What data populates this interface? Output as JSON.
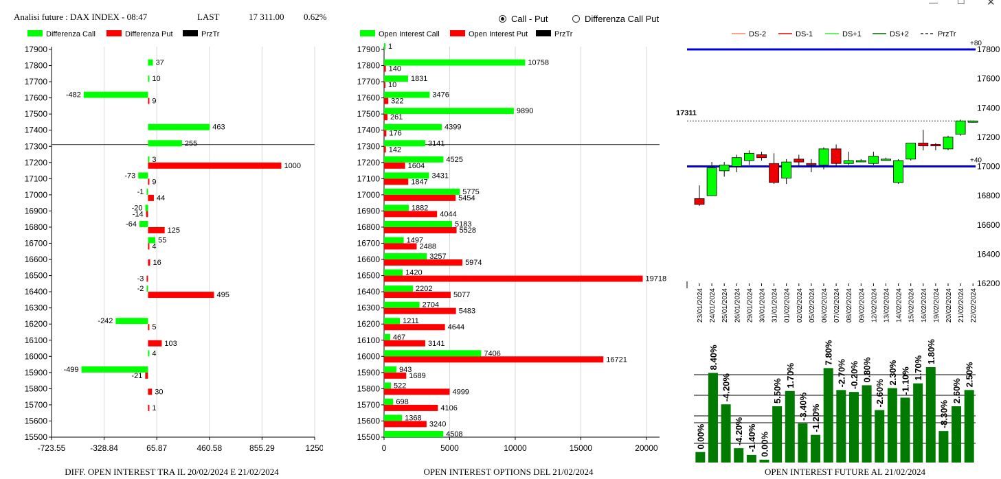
{
  "header": {
    "title": "Analisi future : DAX INDEX - 08:47",
    "last_label": "LAST",
    "last_value": "17 311.00",
    "change": "0.62%"
  },
  "mode_options": [
    {
      "label": "Call - Put",
      "selected": true
    },
    {
      "label": "Differenza Call Put",
      "selected": false
    }
  ],
  "colors": {
    "call": "#00ff00",
    "put": "#ff0000",
    "price_line": "#000000",
    "blue": "#0000cc",
    "bar_green": "#007a00"
  },
  "chart_data": [
    {
      "type": "bar",
      "orientation": "horizontal",
      "title": "DIFF. OPEN INTEREST TRA IL 20/02/2024 E 21/02/2024",
      "legend": [
        "Differenza Call",
        "Differenza Put",
        "PrzTr"
      ],
      "legend_position": "top-left",
      "categories": [
        "17900",
        "17800",
        "17700",
        "17600",
        "17500",
        "17400",
        "17300",
        "17200",
        "17100",
        "17000",
        "16900",
        "16800",
        "16700",
        "16600",
        "16500",
        "16400",
        "16300",
        "16200",
        "16100",
        "16000",
        "15900",
        "15800",
        "15700",
        "15600",
        "15500"
      ],
      "series": [
        {
          "name": "Differenza Call",
          "values": [
            null,
            37,
            10,
            -482,
            null,
            463,
            255,
            3,
            -73,
            -1,
            -20,
            -64,
            55,
            null,
            null,
            -2,
            null,
            -242,
            null,
            4,
            -499,
            null,
            null,
            null,
            null
          ]
        },
        {
          "name": "Differenza Put",
          "values": [
            null,
            null,
            null,
            9,
            null,
            null,
            null,
            1000,
            9,
            44,
            -14,
            125,
            4,
            16,
            -3,
            495,
            null,
            5,
            103,
            null,
            -21,
            30,
            1,
            null,
            null
          ]
        }
      ],
      "x_ticks": [
        "-723.55",
        "-328.84",
        "65.87",
        "460.58",
        "855.29",
        "1250"
      ],
      "xlim": [
        -723.55,
        1250
      ],
      "price_line": "17311",
      "grid": true
    },
    {
      "type": "bar",
      "orientation": "horizontal",
      "title": "OPEN INTEREST OPTIONS DEL 21/02/2024",
      "legend": [
        "Open Interest Call",
        "Open Interest Put",
        "PrzTr"
      ],
      "legend_position": "top-left",
      "categories": [
        "17900",
        "17800",
        "17700",
        "17600",
        "17500",
        "17400",
        "17300",
        "17200",
        "17100",
        "17000",
        "16900",
        "16800",
        "16700",
        "16600",
        "16500",
        "16400",
        "16300",
        "16200",
        "16100",
        "16000",
        "15900",
        "15800",
        "15700",
        "15600",
        "15500"
      ],
      "series": [
        {
          "name": "Open Interest Call",
          "values": [
            1,
            10758,
            1831,
            3476,
            9890,
            4399,
            3141,
            4525,
            3431,
            5775,
            1882,
            5183,
            1497,
            3257,
            1420,
            2202,
            2704,
            1211,
            467,
            7406,
            943,
            522,
            698,
            1368,
            4508
          ]
        },
        {
          "name": "Open Interest Put",
          "values": [
            null,
            140,
            10,
            322,
            261,
            176,
            142,
            1604,
            1847,
            5454,
            4044,
            5528,
            2488,
            5974,
            19718,
            5077,
            5483,
            4644,
            3141,
            16721,
            1689,
            4999,
            4106,
            3240,
            null
          ]
        }
      ],
      "x_ticks": [
        "0",
        "5000",
        "10000",
        "15000",
        "20000"
      ],
      "xlim": [
        0,
        21000
      ],
      "price_line": "17311",
      "grid": true
    },
    {
      "type": "candlestick",
      "title": "OPEN INTEREST FUTURE AL 21/02/2024",
      "legend": [
        "DS-2",
        "DS-1",
        "DS+1",
        "DS+2",
        "PrzTr"
      ],
      "legend_position": "top",
      "x": [
        "23/01/2024",
        "24/01/2024",
        "25/01/2024",
        "26/01/2024",
        "29/01/2024",
        "30/01/2024",
        "31/01/2024",
        "01/02/2024",
        "02/02/2024",
        "05/02/2024",
        "06/02/2024",
        "07/02/2024",
        "08/02/2024",
        "09/02/2024",
        "12/02/2024",
        "13/02/2024",
        "14/02/2024",
        "15/02/2024",
        "16/02/2024",
        "19/02/2024",
        "20/02/2024",
        "21/02/2024",
        "22/02/2024"
      ],
      "candles": [
        {
          "o": 16780,
          "c": 16740,
          "h": 16870,
          "l": 16730
        },
        {
          "o": 16800,
          "c": 16990,
          "h": 17030,
          "l": 16800
        },
        {
          "o": 16970,
          "c": 17010,
          "h": 17030,
          "l": 16930
        },
        {
          "o": 17000,
          "c": 17060,
          "h": 17080,
          "l": 16960
        },
        {
          "o": 17040,
          "c": 17090,
          "h": 17110,
          "l": 17010
        },
        {
          "o": 17080,
          "c": 17060,
          "h": 17100,
          "l": 17040
        },
        {
          "o": 17020,
          "c": 16890,
          "h": 17090,
          "l": 16880
        },
        {
          "o": 16920,
          "c": 17030,
          "h": 17050,
          "l": 16880
        },
        {
          "o": 17050,
          "c": 17030,
          "h": 17080,
          "l": 17000
        },
        {
          "o": 17020,
          "c": 17010,
          "h": 17050,
          "l": 16960
        },
        {
          "o": 17010,
          "c": 17120,
          "h": 17130,
          "l": 16980
        },
        {
          "o": 17120,
          "c": 17020,
          "h": 17150,
          "l": 17000
        },
        {
          "o": 17020,
          "c": 17040,
          "h": 17100,
          "l": 17010
        },
        {
          "o": 17040,
          "c": 17040,
          "h": 17050,
          "l": 17030
        },
        {
          "o": 17020,
          "c": 17070,
          "h": 17100,
          "l": 17010
        },
        {
          "o": 17050,
          "c": 17050,
          "h": 17060,
          "l": 17040
        },
        {
          "o": 16890,
          "c": 17040,
          "h": 17050,
          "l": 16880
        },
        {
          "o": 17050,
          "c": 17160,
          "h": 17160,
          "l": 17040
        },
        {
          "o": 17160,
          "c": 17140,
          "h": 17250,
          "l": 17110
        },
        {
          "o": 17150,
          "c": 17140,
          "h": 17160,
          "l": 17110
        },
        {
          "o": 17120,
          "c": 17200,
          "h": 17210,
          "l": 17110
        },
        {
          "o": 17220,
          "c": 17311,
          "h": 17320,
          "l": 17210
        },
        {
          "o": 17311,
          "c": 17311,
          "h": 17311,
          "l": 17311
        }
      ],
      "y_ticks": [
        "17800",
        "17600",
        "17400",
        "17200",
        "17000",
        "16800",
        "16600",
        "16400",
        "16200"
      ],
      "ylim": [
        16200,
        17800
      ],
      "levels": [
        {
          "value": 17800,
          "label": "+80"
        },
        {
          "value": 17000,
          "label": "+40"
        }
      ],
      "price_line": "17311",
      "oi_changes": [
        "0.00%",
        "8.40%",
        "-4.20%",
        "-4.20%",
        "-1.40%",
        "0.00%",
        "5.50%",
        "1.70%",
        "-3.40%",
        "-1.20%",
        "7.80%",
        "-2.70%",
        "-0.20%",
        "0.80%",
        "-2.60%",
        "2.30%",
        "-1.10%",
        "1.70%",
        "1.80%",
        "-8.30%",
        "2.60%",
        "2.50%"
      ],
      "oi_levels": [
        0.11,
        0.94,
        0.61,
        0.15,
        0.08,
        0.03,
        0.59,
        0.75,
        0.41,
        0.29,
        0.99,
        0.76,
        0.74,
        0.81,
        0.55,
        0.78,
        0.68,
        0.83,
        1.0,
        0.33,
        0.59,
        0.76
      ]
    }
  ],
  "footers": [
    "DIFF. OPEN INTEREST TRA IL 20/02/2024 E 21/02/2024",
    "OPEN INTEREST OPTIONS DEL 21/02/2024",
    "OPEN INTEREST FUTURE AL 21/02/2024"
  ]
}
